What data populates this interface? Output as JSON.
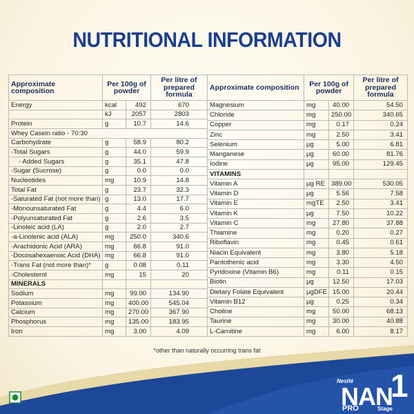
{
  "title": "NUTRITIONAL INFORMATION",
  "tables": [
    {
      "header": [
        "Approximate composition",
        "Per 100g of powder",
        "Per litre of prepared formula"
      ],
      "rows": [
        {
          "name": "Energy",
          "unit": "kcal",
          "per100g": "492",
          "perLitre": "670"
        },
        {
          "unit": "kJ",
          "per100g": "2057",
          "perLitre": "2803"
        },
        {
          "name": "Protein",
          "unit": "g",
          "per100g": "10.7",
          "perLitre": "14.6"
        },
        {
          "name": "Whey Casein ratio - 70:30"
        },
        {
          "name": "Carbohydrate",
          "unit": "g",
          "per100g": "58.9",
          "perLitre": "80.2"
        },
        {
          "name": "-Total Sugars",
          "unit": "g",
          "per100g": "44.0",
          "perLitre": "59.9"
        },
        {
          "name": "- Added Sugars",
          "unit": "g",
          "per100g": "35.1",
          "perLitre": "47.8",
          "indent": true
        },
        {
          "name": "-Sugar (Sucrose)",
          "unit": "g",
          "per100g": "0.0",
          "perLitre": "0.0"
        },
        {
          "name": "Nucleotides",
          "unit": "mg",
          "per100g": "10.9",
          "perLitre": "14.8"
        },
        {
          "name": "Total Fat",
          "unit": "g",
          "per100g": "23.7",
          "perLitre": "32.3"
        },
        {
          "name": "-Saturated Fat (not more than)",
          "unit": "g",
          "per100g": "13.0",
          "perLitre": "17.7"
        },
        {
          "name": "-Monounsaturated Fat",
          "unit": "g",
          "per100g": "4.4",
          "perLitre": "6.0"
        },
        {
          "name": "-Polyunsaturated Fat",
          "unit": "g",
          "per100g": "2.6",
          "perLitre": "3.5"
        },
        {
          "name": "-Linoleic acid (LA)",
          "unit": "g",
          "per100g": "2.0",
          "perLitre": "2.7"
        },
        {
          "name": "-a-Linolenic acid (ALA)",
          "unit": "mg",
          "per100g": "250.0",
          "perLitre": "340.6"
        },
        {
          "name": "-Arachidonic Acid (ARA)",
          "unit": "mg",
          "per100g": "66.8",
          "perLitre": "91.0"
        },
        {
          "name": "-Docosahexaenoic Acid (DHA)",
          "unit": "mg",
          "per100g": "66.8",
          "perLitre": "91.0"
        },
        {
          "name": "-Trans Fat (not more than)*",
          "unit": "g",
          "per100g": "0.08",
          "perLitre": "0.11"
        },
        {
          "name": "-Cholesterol",
          "unit": "mg",
          "per100g": "15",
          "perLitre": "20"
        },
        {
          "section": "MINERALS"
        },
        {
          "name": "Sodium",
          "unit": "mg",
          "per100g": "99.00",
          "perLitre": "134.90"
        },
        {
          "name": "Potassium",
          "unit": "mg",
          "per100g": "400.00",
          "perLitre": "545.04"
        },
        {
          "name": "Calcium",
          "unit": "mg",
          "per100g": "270.00",
          "perLitre": "367.90"
        },
        {
          "name": "Phosphorus",
          "unit": "mg",
          "per100g": "135.00",
          "perLitre": "183.95"
        },
        {
          "name": "Iron",
          "unit": "mg",
          "per100g": "3.00",
          "perLitre": "4.09"
        }
      ]
    },
    {
      "header": [
        "Approximate composition",
        "Per 100g of powder",
        "Per litre of prepared formula"
      ],
      "rows": [
        {
          "name": "Magnesium",
          "unit": "mg",
          "per100g": "40.00",
          "perLitre": "54.50"
        },
        {
          "name": "Chloride",
          "unit": "mg",
          "per100g": "250.00",
          "perLitre": "340.65"
        },
        {
          "name": "Copper",
          "unit": "mg",
          "per100g": "0.17",
          "perLitre": "0.24"
        },
        {
          "name": "Zinc",
          "unit": "mg",
          "per100g": "2.50",
          "perLitre": "3.41"
        },
        {
          "name": "Selenium",
          "unit": "µg",
          "per100g": "5.00",
          "perLitre": "6.81"
        },
        {
          "name": "Manganese",
          "unit": "µg",
          "per100g": "60.00",
          "perLitre": "81.76"
        },
        {
          "name": "Iodine",
          "unit": "µg",
          "per100g": "95.00",
          "perLitre": "129.45"
        },
        {
          "section": "VITAMINS"
        },
        {
          "name": "Vitamin A",
          "unit": "µg RE",
          "per100g": "389.00",
          "perLitre": "530.05"
        },
        {
          "name": "Vitamin D",
          "unit": "µg",
          "per100g": "5.56",
          "perLitre": "7.58"
        },
        {
          "name": "Vitamin E",
          "unit": "mgTE",
          "per100g": "2.50",
          "perLitre": "3.41"
        },
        {
          "name": "Vitamin K",
          "unit": "µg",
          "per100g": "7.50",
          "perLitre": "10.22"
        },
        {
          "name": "Vitamin C",
          "unit": "mg",
          "per100g": "27.80",
          "perLitre": "37.88"
        },
        {
          "name": "Thiamine",
          "unit": "mg",
          "per100g": "0.20",
          "perLitre": "0.27"
        },
        {
          "name": "Riboflavin",
          "unit": "mg",
          "per100g": "0.45",
          "perLitre": "0.61"
        },
        {
          "name": "Niacin Equivalent",
          "unit": "mg",
          "per100g": "3.80",
          "perLitre": "5.18"
        },
        {
          "name": "Pantothenic acid",
          "unit": "mg",
          "per100g": "3.30",
          "perLitre": "4.50"
        },
        {
          "name": "Pyridoxine (Vitamin B6)",
          "unit": "mg",
          "per100g": "0.11",
          "perLitre": "0.15"
        },
        {
          "name": "Biotin",
          "unit": "µg",
          "per100g": "12.50",
          "perLitre": "17.03"
        },
        {
          "name": "Dietary Folate Equivalent",
          "unit": "µgDFE",
          "per100g": "15.00",
          "perLitre": "20.44"
        },
        {
          "name": "Vitamin B12",
          "unit": "µg",
          "per100g": "0.25",
          "perLitre": "0.34"
        },
        {
          "name": "Choline",
          "unit": "mg",
          "per100g": "50.00",
          "perLitre": "68.13"
        },
        {
          "name": "Taurine",
          "unit": "mg",
          "per100g": "30.00",
          "perLitre": "40.88"
        },
        {
          "name": "L-Carnitine",
          "unit": "mg",
          "per100g": "6.00",
          "perLitre": "8.17"
        }
      ]
    }
  ],
  "footnote": "*other than naturally occurring trans fat",
  "brand": {
    "maker": "Nestlé",
    "product": "NAN",
    "line": "PRO",
    "stage_number": "1",
    "stage_label": "Stage"
  }
}
